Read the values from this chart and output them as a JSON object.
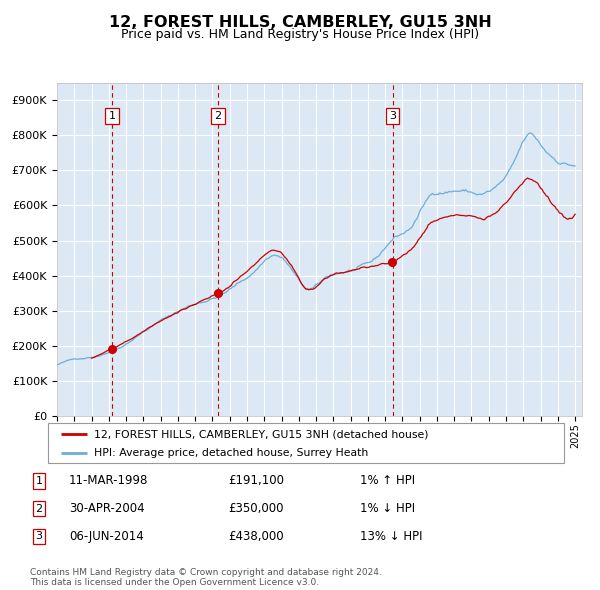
{
  "title": "12, FOREST HILLS, CAMBERLEY, GU15 3NH",
  "subtitle": "Price paid vs. HM Land Registry's House Price Index (HPI)",
  "background_color": "#ffffff",
  "plot_bg_color": "#dce9f5",
  "grid_color": "#ffffff",
  "ylim": [
    0,
    950000
  ],
  "yticks": [
    0,
    100000,
    200000,
    300000,
    400000,
    500000,
    600000,
    700000,
    800000,
    900000
  ],
  "ytick_labels": [
    "£0",
    "£100K",
    "£200K",
    "£300K",
    "£400K",
    "£500K",
    "£600K",
    "£700K",
    "£800K",
    "£900K"
  ],
  "x_start_year": 1995,
  "x_end_year": 2025,
  "sale_year_floats": [
    1998.19,
    2004.33,
    2014.44
  ],
  "sale_prices": [
    191100,
    350000,
    438000
  ],
  "sale_labels": [
    "1",
    "2",
    "3"
  ],
  "vline_color": "#cc0000",
  "sale_dot_color": "#cc0000",
  "hpi_line_color": "#6baed6",
  "price_line_color": "#cc0000",
  "legend_label_price": "12, FOREST HILLS, CAMBERLEY, GU15 3NH (detached house)",
  "legend_label_hpi": "HPI: Average price, detached house, Surrey Heath",
  "table_rows": [
    {
      "num": "1",
      "date": "11-MAR-1998",
      "price": "£191,100",
      "change": "1% ↑ HPI"
    },
    {
      "num": "2",
      "date": "30-APR-2004",
      "price": "£350,000",
      "change": "1% ↓ HPI"
    },
    {
      "num": "3",
      "date": "06-JUN-2014",
      "price": "£438,000",
      "change": "13% ↓ HPI"
    }
  ],
  "footer": "Contains HM Land Registry data © Crown copyright and database right 2024.\nThis data is licensed under the Open Government Licence v3.0."
}
